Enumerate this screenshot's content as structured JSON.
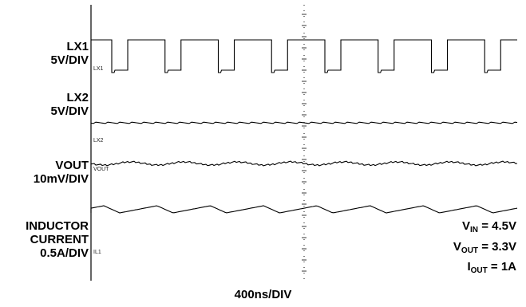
{
  "chart_data": {
    "type": "line",
    "title": "",
    "xlabel": "400ns/DIV",
    "time_per_div_ns": 400,
    "x_divisions": 10,
    "traces": [
      {
        "name": "LX1",
        "scale_label": "5V/DIV",
        "marker": "LX1",
        "waveform": "switching",
        "period_divisions": 1.25,
        "duty_high_fraction": 0.7
      },
      {
        "name": "LX2",
        "scale_label": "5V/DIV",
        "marker": "LX2",
        "waveform": "flat",
        "period_divisions": 1.25
      },
      {
        "name": "VOUT",
        "scale_label": "10mV/DIV",
        "marker": "VOUT",
        "waveform": "ripple",
        "period_divisions": 1.25
      },
      {
        "name": "INDUCTOR CURRENT",
        "scale_label": "0.5A/DIV",
        "marker": "IL1",
        "waveform": "triangle",
        "period_divisions": 1.25
      }
    ],
    "annotations": [
      {
        "symbol": "V",
        "sub": "IN",
        "value": "= 4.5V"
      },
      {
        "symbol": "V",
        "sub": "OUT",
        "value": "= 3.3V"
      },
      {
        "symbol": "I",
        "sub": "OUT",
        "value": "= 1A"
      }
    ]
  },
  "labels": {
    "lx1_name": "LX1",
    "lx1_scale": "5V/DIV",
    "lx2_name": "LX2",
    "lx2_scale": "5V/DIV",
    "vout_name": "VOUT",
    "vout_scale": "10mV/DIV",
    "il_name_1": "INDUCTOR",
    "il_name_2": "CURRENT",
    "il_scale": "0.5A/DIV"
  },
  "colors": {
    "trace": "#000000",
    "grid": "#000000",
    "background": "#ffffff"
  }
}
